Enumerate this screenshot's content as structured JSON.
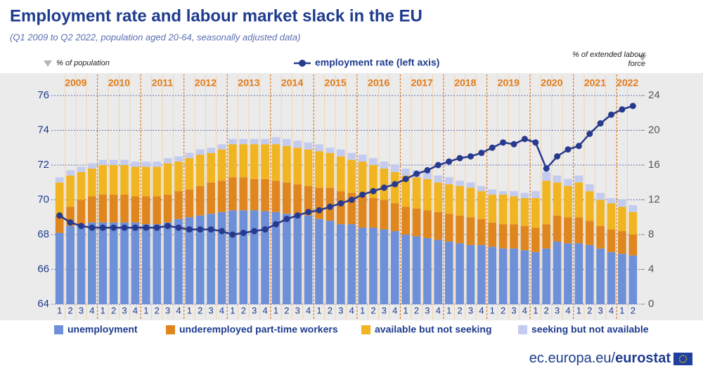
{
  "chart_data": {
    "type": "bar",
    "title": "Employment rate and labour market slack in the EU",
    "subtitle": "(Q1 2009 to Q2 2022, population aged 20-64, seasonally adjusted data)",
    "y_label": "% of population",
    "y2_label": "% of extended labour force",
    "years": [
      "2009",
      "2010",
      "2011",
      "2012",
      "2013",
      "2014",
      "2015",
      "2016",
      "2017",
      "2018",
      "2019",
      "2020",
      "2021",
      "2022"
    ],
    "categories": [
      "1",
      "2",
      "3",
      "4",
      "1",
      "2",
      "3",
      "4",
      "1",
      "2",
      "3",
      "4",
      "1",
      "2",
      "3",
      "4",
      "1",
      "2",
      "3",
      "4",
      "1",
      "2",
      "3",
      "4",
      "1",
      "2",
      "3",
      "4",
      "1",
      "2",
      "3",
      "4",
      "1",
      "2",
      "3",
      "4",
      "1",
      "2",
      "3",
      "4",
      "1",
      "2",
      "3",
      "4",
      "1",
      "2",
      "3",
      "4",
      "1",
      "2",
      "3",
      "4",
      "1",
      "2"
    ],
    "ylim": [
      64,
      76
    ],
    "yticks": [
      64,
      66,
      68,
      70,
      72,
      74,
      76
    ],
    "y2lim": [
      0,
      24
    ],
    "y2ticks": [
      0,
      4,
      8,
      12,
      16,
      20,
      24
    ],
    "grid": true,
    "stacked": true,
    "series": [
      {
        "name": "unemployment",
        "color": "#6e90d8",
        "axis": "y2",
        "values": [
          8.2,
          9.0,
          9.2,
          9.4,
          9.4,
          9.4,
          9.4,
          9.4,
          9.2,
          9.2,
          9.4,
          9.8,
          10.0,
          10.2,
          10.4,
          10.6,
          10.8,
          10.8,
          10.8,
          10.7,
          10.6,
          10.4,
          10.4,
          10.2,
          9.8,
          9.6,
          9.2,
          9.2,
          8.8,
          8.8,
          8.6,
          8.4,
          8.0,
          7.8,
          7.6,
          7.4,
          7.2,
          7.0,
          6.8,
          6.8,
          6.6,
          6.4,
          6.4,
          6.2,
          6.0,
          6.4,
          7.2,
          7.0,
          7.0,
          6.8,
          6.4,
          6.0,
          5.8,
          5.6
        ]
      },
      {
        "name": "underemployed part-time workers",
        "color": "#e0861e",
        "axis": "y2",
        "values": [
          2.0,
          2.2,
          2.8,
          3.0,
          3.2,
          3.2,
          3.2,
          3.0,
          3.2,
          3.2,
          3.2,
          3.2,
          3.2,
          3.4,
          3.6,
          3.6,
          3.8,
          3.8,
          3.6,
          3.7,
          3.6,
          3.6,
          3.4,
          3.4,
          3.6,
          3.8,
          3.8,
          3.6,
          3.6,
          3.4,
          3.4,
          3.2,
          3.2,
          3.2,
          3.2,
          3.2,
          3.2,
          3.2,
          3.2,
          3.0,
          2.8,
          2.8,
          2.8,
          2.8,
          2.8,
          2.8,
          3.0,
          3.0,
          3.0,
          2.8,
          2.6,
          2.6,
          2.6,
          2.4
        ]
      },
      {
        "name": "available but not seeking",
        "color": "#f0b521",
        "axis": "y2",
        "values": [
          3.8,
          3.6,
          3.2,
          3.2,
          3.4,
          3.4,
          3.4,
          3.4,
          3.4,
          3.4,
          3.6,
          3.4,
          3.6,
          3.6,
          3.4,
          3.6,
          3.8,
          3.8,
          4.0,
          4.0,
          4.2,
          4.2,
          4.2,
          4.2,
          4.2,
          4.0,
          4.0,
          3.8,
          4.0,
          3.8,
          3.6,
          3.6,
          3.6,
          3.6,
          3.6,
          3.4,
          3.4,
          3.4,
          3.4,
          3.2,
          3.2,
          3.4,
          3.2,
          3.2,
          3.4,
          5.0,
          3.8,
          3.6,
          4.0,
          3.4,
          3.0,
          3.0,
          2.8,
          2.6
        ]
      },
      {
        "name": "seeking but not available",
        "color": "#c3ccf0",
        "axis": "y2",
        "values": [
          0.6,
          0.6,
          0.6,
          0.6,
          0.6,
          0.6,
          0.6,
          0.6,
          0.6,
          0.6,
          0.6,
          0.6,
          0.6,
          0.6,
          0.6,
          0.6,
          0.6,
          0.6,
          0.6,
          0.6,
          0.8,
          0.8,
          0.8,
          0.8,
          0.8,
          0.6,
          0.8,
          0.8,
          0.8,
          0.8,
          0.8,
          0.8,
          0.8,
          0.8,
          0.8,
          0.8,
          0.8,
          0.6,
          0.6,
          0.6,
          0.6,
          0.4,
          0.6,
          0.6,
          0.8,
          1.0,
          0.8,
          0.8,
          0.8,
          0.8,
          0.8,
          0.6,
          0.8,
          0.8
        ]
      },
      {
        "name": "employment rate (left axis)",
        "color": "#283a8e",
        "axis": "y",
        "type": "line",
        "values": [
          69.1,
          68.7,
          68.5,
          68.4,
          68.4,
          68.4,
          68.4,
          68.4,
          68.4,
          68.4,
          68.5,
          68.4,
          68.3,
          68.3,
          68.3,
          68.2,
          68.0,
          68.1,
          68.2,
          68.3,
          68.6,
          68.9,
          69.1,
          69.3,
          69.4,
          69.6,
          69.8,
          70.0,
          70.3,
          70.5,
          70.7,
          70.9,
          71.2,
          71.5,
          71.7,
          72.0,
          72.2,
          72.4,
          72.5,
          72.7,
          73.0,
          73.3,
          73.2,
          73.5,
          73.3,
          71.8,
          72.5,
          72.9,
          73.1,
          73.8,
          74.4,
          74.9,
          75.2,
          75.4
        ]
      }
    ]
  },
  "footer": {
    "site": "ec.europa.eu/",
    "brand": "eurostat"
  }
}
